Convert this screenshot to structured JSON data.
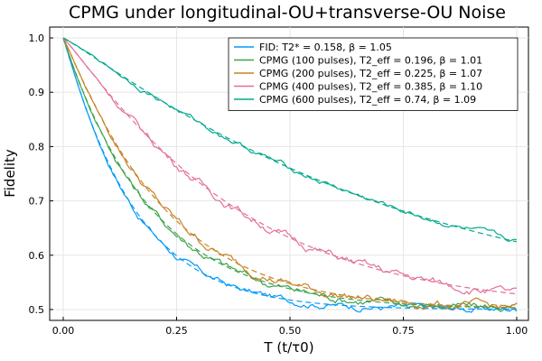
{
  "chart_data": {
    "type": "line",
    "title": "CPMG under longitudinal-OU+transverse-OU Noise",
    "xlabel": "T (t/τ0)",
    "ylabel": "Fidelity",
    "xlim": [
      0,
      1
    ],
    "ylim": [
      0.48,
      1.02
    ],
    "xticks": [
      0,
      0.25,
      0.5,
      0.75,
      1
    ],
    "xtick_labels": [
      "0.00",
      "0.25",
      "0.50",
      "0.75",
      "1.00"
    ],
    "yticks": [
      0.5,
      0.6,
      0.7,
      0.8,
      0.9,
      1.0
    ],
    "ytick_labels": [
      "0.5",
      "0.6",
      "0.7",
      "0.8",
      "0.9",
      "1.0"
    ],
    "grid": true,
    "legend_position": "top-right",
    "fit_model": "0.5 + 0.5 * exp(-(T / T2)^beta)",
    "series": [
      {
        "name": "FID: T2* = 0.158, β = 1.05",
        "color": "#009AFA",
        "T2": 0.158,
        "beta": 1.05,
        "noise": 0.004
      },
      {
        "name": "CPMG (100 pulses), T2_eff = 0.196, β = 1.01",
        "color": "#3DA44D",
        "T2": 0.196,
        "beta": 1.01,
        "noise": 0.005
      },
      {
        "name": "CPMG (200 pulses), T2_eff = 0.225, β = 1.07",
        "color": "#C68225",
        "T2": 0.225,
        "beta": 1.07,
        "noise": 0.005
      },
      {
        "name": "CPMG (400 pulses), T2_eff = 0.385, β = 1.10",
        "color": "#E26F99",
        "T2": 0.385,
        "beta": 1.1,
        "noise": 0.005
      },
      {
        "name": "CPMG (600 pulses), T2_eff = 0.74, β = 1.09",
        "color": "#00A98D",
        "T2": 0.74,
        "beta": 1.09,
        "noise": 0.003
      }
    ]
  }
}
